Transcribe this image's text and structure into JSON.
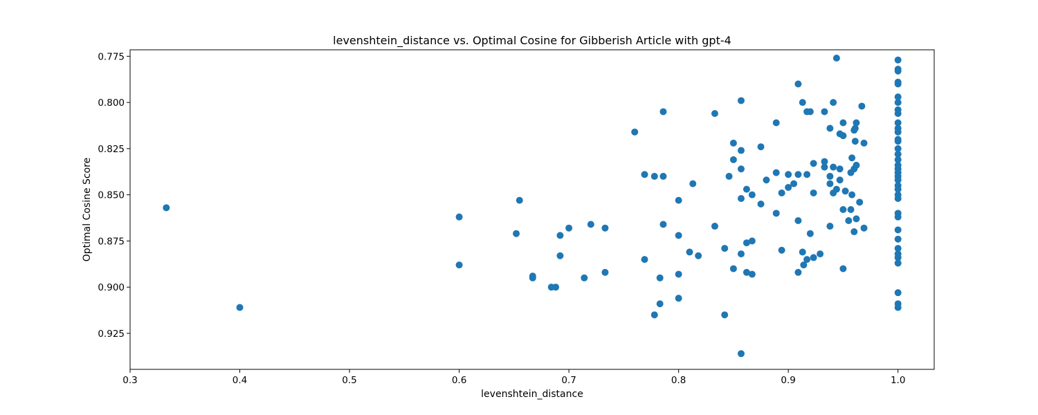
{
  "chart_data": {
    "type": "scatter",
    "title": "levenshtein_distance vs. Optimal Cosine for Gibberish Article with gpt-4",
    "xlabel": "levenshtein_distance",
    "ylabel": "Optimal Cosine Score",
    "xlim": [
      0.3,
      1.033
    ],
    "ylim": [
      0.9445,
      0.7715
    ],
    "y_inverted": true,
    "x_ticks": [
      0.3,
      0.4,
      0.5,
      0.6,
      0.7,
      0.8,
      0.9,
      1.0
    ],
    "x_tick_labels": [
      "0.3",
      "0.4",
      "0.5",
      "0.6",
      "0.7",
      "0.8",
      "0.9",
      "1.0"
    ],
    "y_ticks": [
      0.775,
      0.8,
      0.825,
      0.85,
      0.875,
      0.9,
      0.925
    ],
    "y_tick_labels": [
      "0.775",
      "0.800",
      "0.825",
      "0.850",
      "0.875",
      "0.900",
      "0.925"
    ],
    "grid": false,
    "legend": "none",
    "marker_color": "#1f77b4",
    "points": [
      [
        0.333,
        0.857
      ],
      [
        0.4,
        0.911
      ],
      [
        0.6,
        0.862
      ],
      [
        0.6,
        0.888
      ],
      [
        0.652,
        0.871
      ],
      [
        0.655,
        0.853
      ],
      [
        0.667,
        0.894
      ],
      [
        0.667,
        0.895
      ],
      [
        0.684,
        0.9
      ],
      [
        0.688,
        0.9
      ],
      [
        0.692,
        0.883
      ],
      [
        0.692,
        0.872
      ],
      [
        0.7,
        0.868
      ],
      [
        0.714,
        0.895
      ],
      [
        0.72,
        0.866
      ],
      [
        0.733,
        0.868
      ],
      [
        0.733,
        0.892
      ],
      [
        0.76,
        0.816
      ],
      [
        0.769,
        0.839
      ],
      [
        0.769,
        0.885
      ],
      [
        0.778,
        0.84
      ],
      [
        0.778,
        0.915
      ],
      [
        0.783,
        0.895
      ],
      [
        0.783,
        0.909
      ],
      [
        0.786,
        0.805
      ],
      [
        0.786,
        0.84
      ],
      [
        0.786,
        0.866
      ],
      [
        0.8,
        0.853
      ],
      [
        0.8,
        0.872
      ],
      [
        0.8,
        0.893
      ],
      [
        0.8,
        0.906
      ],
      [
        0.81,
        0.881
      ],
      [
        0.813,
        0.844
      ],
      [
        0.818,
        0.883
      ],
      [
        0.833,
        0.806
      ],
      [
        0.833,
        0.867
      ],
      [
        0.842,
        0.879
      ],
      [
        0.842,
        0.915
      ],
      [
        0.846,
        0.84
      ],
      [
        0.85,
        0.822
      ],
      [
        0.85,
        0.831
      ],
      [
        0.85,
        0.89
      ],
      [
        0.857,
        0.799
      ],
      [
        0.857,
        0.826
      ],
      [
        0.857,
        0.836
      ],
      [
        0.857,
        0.852
      ],
      [
        0.857,
        0.882
      ],
      [
        0.857,
        0.936
      ],
      [
        0.862,
        0.847
      ],
      [
        0.862,
        0.876
      ],
      [
        0.862,
        0.892
      ],
      [
        0.867,
        0.85
      ],
      [
        0.867,
        0.875
      ],
      [
        0.867,
        0.893
      ],
      [
        0.875,
        0.824
      ],
      [
        0.875,
        0.855
      ],
      [
        0.88,
        0.842
      ],
      [
        0.889,
        0.811
      ],
      [
        0.889,
        0.838
      ],
      [
        0.889,
        0.86
      ],
      [
        0.894,
        0.849
      ],
      [
        0.894,
        0.88
      ],
      [
        0.9,
        0.839
      ],
      [
        0.9,
        0.846
      ],
      [
        0.905,
        0.844
      ],
      [
        0.909,
        0.79
      ],
      [
        0.909,
        0.839
      ],
      [
        0.909,
        0.864
      ],
      [
        0.909,
        0.892
      ],
      [
        0.913,
        0.8
      ],
      [
        0.913,
        0.881
      ],
      [
        0.914,
        0.888
      ],
      [
        0.917,
        0.805
      ],
      [
        0.917,
        0.839
      ],
      [
        0.917,
        0.885
      ],
      [
        0.92,
        0.805
      ],
      [
        0.92,
        0.871
      ],
      [
        0.923,
        0.833
      ],
      [
        0.923,
        0.849
      ],
      [
        0.923,
        0.884
      ],
      [
        0.929,
        0.882
      ],
      [
        0.933,
        0.805
      ],
      [
        0.933,
        0.832
      ],
      [
        0.933,
        0.835
      ],
      [
        0.938,
        0.814
      ],
      [
        0.938,
        0.84
      ],
      [
        0.938,
        0.844
      ],
      [
        0.938,
        0.867
      ],
      [
        0.941,
        0.8
      ],
      [
        0.941,
        0.835
      ],
      [
        0.941,
        0.849
      ],
      [
        0.944,
        0.776
      ],
      [
        0.944,
        0.847
      ],
      [
        0.947,
        0.817
      ],
      [
        0.947,
        0.836
      ],
      [
        0.947,
        0.842
      ],
      [
        0.95,
        0.811
      ],
      [
        0.95,
        0.818
      ],
      [
        0.95,
        0.858
      ],
      [
        0.95,
        0.89
      ],
      [
        0.952,
        0.848
      ],
      [
        0.955,
        0.864
      ],
      [
        0.957,
        0.838
      ],
      [
        0.957,
        0.858
      ],
      [
        0.958,
        0.85
      ],
      [
        0.958,
        0.83
      ],
      [
        0.96,
        0.815
      ],
      [
        0.96,
        0.836
      ],
      [
        0.96,
        0.87
      ],
      [
        0.961,
        0.814
      ],
      [
        0.961,
        0.821
      ],
      [
        0.962,
        0.834
      ],
      [
        0.962,
        0.863
      ],
      [
        0.962,
        0.811
      ],
      [
        0.965,
        0.854
      ],
      [
        0.967,
        0.802
      ],
      [
        0.969,
        0.822
      ],
      [
        0.969,
        0.868
      ],
      [
        1.0,
        0.777
      ],
      [
        1.0,
        0.782
      ],
      [
        1.0,
        0.783
      ],
      [
        1.0,
        0.789
      ],
      [
        1.0,
        0.79
      ],
      [
        1.0,
        0.797
      ],
      [
        1.0,
        0.8
      ],
      [
        1.0,
        0.804
      ],
      [
        1.0,
        0.806
      ],
      [
        1.0,
        0.811
      ],
      [
        1.0,
        0.814
      ],
      [
        1.0,
        0.816
      ],
      [
        1.0,
        0.82
      ],
      [
        1.0,
        0.821
      ],
      [
        1.0,
        0.825
      ],
      [
        1.0,
        0.828
      ],
      [
        1.0,
        0.831
      ],
      [
        1.0,
        0.834
      ],
      [
        1.0,
        0.836
      ],
      [
        1.0,
        0.838
      ],
      [
        1.0,
        0.84
      ],
      [
        1.0,
        0.842
      ],
      [
        1.0,
        0.845
      ],
      [
        1.0,
        0.847
      ],
      [
        1.0,
        0.85
      ],
      [
        1.0,
        0.852
      ],
      [
        1.0,
        0.86
      ],
      [
        1.0,
        0.862
      ],
      [
        1.0,
        0.869
      ],
      [
        1.0,
        0.874
      ],
      [
        1.0,
        0.879
      ],
      [
        1.0,
        0.882
      ],
      [
        1.0,
        0.884
      ],
      [
        1.0,
        0.887
      ],
      [
        1.0,
        0.903
      ],
      [
        1.0,
        0.909
      ],
      [
        1.0,
        0.911
      ]
    ]
  }
}
